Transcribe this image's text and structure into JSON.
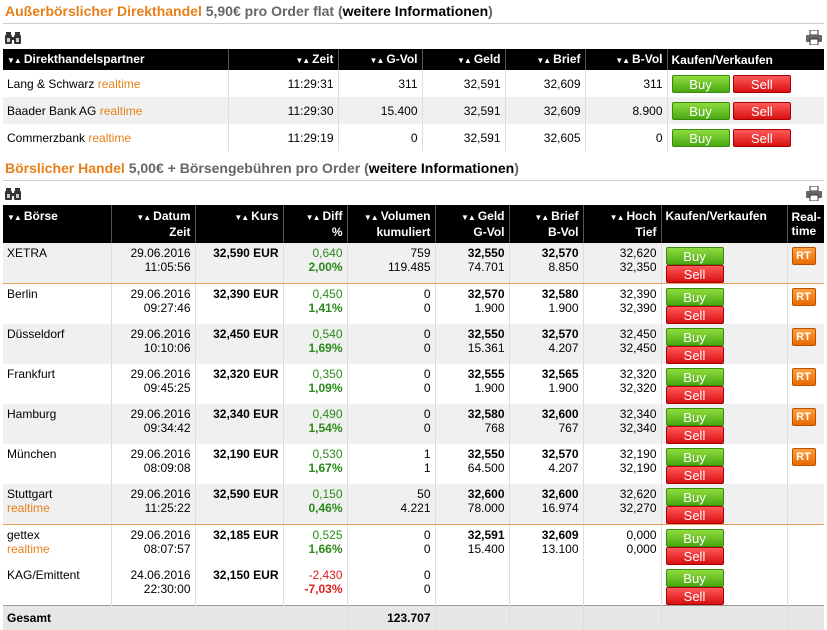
{
  "section1": {
    "title": "Außerbörslicher Direkthandel",
    "price": "5,90€ pro Order flat",
    "paren_open": "(",
    "link": "weitere Informationen",
    "paren_close": ")"
  },
  "section2": {
    "title": "Börslicher Handel",
    "price": "5,00€ + Börsengebühren pro Order",
    "paren_open": "(",
    "link": "weitere Informationen",
    "paren_close": ")"
  },
  "icons": {
    "binoculars": "binoculars-icon",
    "print": "print-icon",
    "sort": "sort-triangles"
  },
  "sort_glyph": "▼▲",
  "buy_label": "Buy",
  "sell_label": "Sell",
  "rt_label": "RT",
  "direct": {
    "headers": [
      "Direkthandelspartner",
      "Zeit",
      "G-Vol",
      "Geld",
      "Brief",
      "B-Vol",
      "Kaufen/Verkaufen"
    ],
    "rows": [
      {
        "name": "Lang & Schwarz",
        "tag": "realtime",
        "zeit": "11:29:31",
        "gvol": "311",
        "geld": "32,591",
        "brief": "32,609",
        "bvol": "311"
      },
      {
        "name": "Baader Bank AG",
        "tag": "realtime",
        "zeit": "11:29:30",
        "gvol": "15.400",
        "geld": "32,591",
        "brief": "32,609",
        "bvol": "8.900"
      },
      {
        "name": "Commerzbank",
        "tag": "realtime",
        "zeit": "11:29:19",
        "gvol": "0",
        "geld": "32,591",
        "brief": "32,605",
        "bvol": "0"
      }
    ]
  },
  "exchange": {
    "headers": {
      "boerse": "Börse",
      "datum": "Datum",
      "zeit": "Zeit",
      "kurs": "Kurs",
      "diff": "Diff",
      "pct": "%",
      "vol1": "Volumen",
      "vol2": "kumuliert",
      "geld": "Geld",
      "gvol": "G-Vol",
      "brief": "Brief",
      "bvol": "B-Vol",
      "hoch": "Hoch",
      "tief": "Tief",
      "kv": "Kaufen/Verkaufen",
      "rt1": "Real-",
      "rt2": "time"
    },
    "rows": [
      {
        "name": "XETRA",
        "tag": "",
        "date": "29.06.2016",
        "time": "11:05:56",
        "kurs": "32,590 EUR",
        "diff": "0,640",
        "pct": "2,00%",
        "sign": "pos",
        "vol": "759",
        "cum": "119.485",
        "geld": "32,550",
        "gvol": "74.701",
        "brief": "32,570",
        "bvol": "8.850",
        "hoch": "32,620",
        "tief": "32,350",
        "rt": true
      },
      {
        "name": "Berlin",
        "tag": "",
        "date": "29.06.2016",
        "time": "09:27:46",
        "kurs": "32,390 EUR",
        "diff": "0,450",
        "pct": "1,41%",
        "sign": "pos",
        "vol": "0",
        "cum": "0",
        "geld": "32,570",
        "gvol": "1.900",
        "brief": "32,580",
        "bvol": "1.900",
        "hoch": "32,390",
        "tief": "32,390",
        "rt": true
      },
      {
        "name": "Düsseldorf",
        "tag": "",
        "date": "29.06.2016",
        "time": "10:10:06",
        "kurs": "32,450 EUR",
        "diff": "0,540",
        "pct": "1,69%",
        "sign": "pos",
        "vol": "0",
        "cum": "0",
        "geld": "32,550",
        "gvol": "15.361",
        "brief": "32,570",
        "bvol": "4.207",
        "hoch": "32,450",
        "tief": "32,450",
        "rt": true
      },
      {
        "name": "Frankfurt",
        "tag": "",
        "date": "29.06.2016",
        "time": "09:45:25",
        "kurs": "32,320 EUR",
        "diff": "0,350",
        "pct": "1,09%",
        "sign": "pos",
        "vol": "0",
        "cum": "0",
        "geld": "32,555",
        "gvol": "1.900",
        "brief": "32,565",
        "bvol": "1.900",
        "hoch": "32,320",
        "tief": "32,320",
        "rt": true
      },
      {
        "name": "Hamburg",
        "tag": "",
        "date": "29.06.2016",
        "time": "09:34:42",
        "kurs": "32,340 EUR",
        "diff": "0,490",
        "pct": "1,54%",
        "sign": "pos",
        "vol": "0",
        "cum": "0",
        "geld": "32,580",
        "gvol": "768",
        "brief": "32,600",
        "bvol": "767",
        "hoch": "32,340",
        "tief": "32,340",
        "rt": true
      },
      {
        "name": "München",
        "tag": "",
        "date": "29.06.2016",
        "time": "08:09:08",
        "kurs": "32,190 EUR",
        "diff": "0,530",
        "pct": "1,67%",
        "sign": "pos",
        "vol": "1",
        "cum": "1",
        "geld": "32,550",
        "gvol": "64.500",
        "brief": "32,570",
        "bvol": "4.207",
        "hoch": "32,190",
        "tief": "32,190",
        "rt": true
      },
      {
        "name": "Stuttgart",
        "tag": "realtime",
        "date": "29.06.2016",
        "time": "11:25:22",
        "kurs": "32,590 EUR",
        "diff": "0,150",
        "pct": "0,46%",
        "sign": "pos",
        "vol": "50",
        "cum": "4.221",
        "geld": "32,600",
        "gvol": "78.000",
        "brief": "32,600",
        "bvol": "16.974",
        "hoch": "32,620",
        "tief": "32,270",
        "rt": false
      },
      {
        "name": "gettex",
        "tag": "realtime",
        "date": "29.06.2016",
        "time": "08:07:57",
        "kurs": "32,185 EUR",
        "diff": "0,525",
        "pct": "1,66%",
        "sign": "pos",
        "vol": "0",
        "cum": "0",
        "geld": "32,591",
        "gvol": "15.400",
        "brief": "32,609",
        "bvol": "13.100",
        "hoch": "0,000",
        "tief": "0,000",
        "rt": false
      },
      {
        "name": "KAG/Emittent",
        "tag": "",
        "date": "24.06.2016",
        "time": "22:30:00",
        "kurs": "32,150 EUR",
        "diff": "-2,430",
        "pct": "-7,03%",
        "sign": "neg",
        "vol": "0",
        "cum": "0",
        "geld": "",
        "gvol": "",
        "brief": "",
        "bvol": "",
        "hoch": "",
        "tief": "",
        "rt": false
      }
    ],
    "total_label": "Gesamt",
    "total_value": "123.707"
  }
}
